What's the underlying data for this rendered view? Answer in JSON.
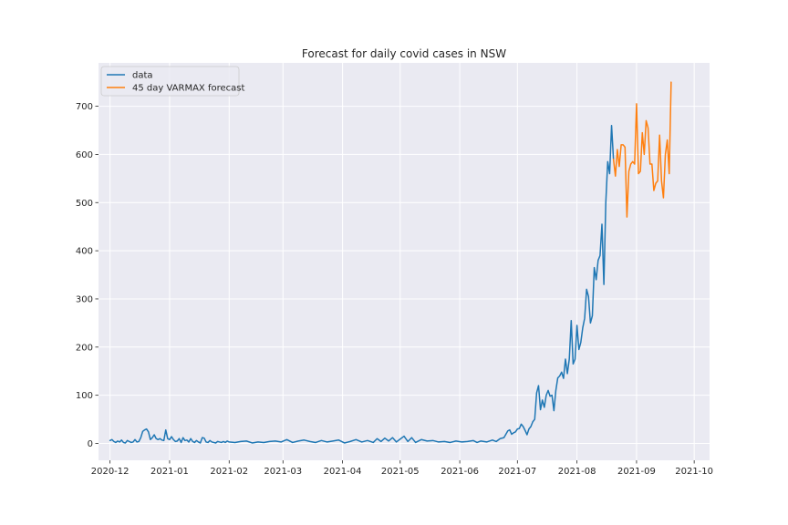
{
  "chart_data": {
    "type": "line",
    "title": "Forecast for daily covid cases in NSW",
    "xlabel": "",
    "ylabel": "",
    "x_axis": "date",
    "xlim": [
      "2020-11-25",
      "2021-10-09"
    ],
    "ylim": [
      -35,
      790
    ],
    "grid": true,
    "legend_position": "top-left",
    "x_ticks": [
      "2020-12-01",
      "2021-01-01",
      "2021-02-01",
      "2021-03-01",
      "2021-04-01",
      "2021-05-01",
      "2021-06-01",
      "2021-07-01",
      "2021-08-01",
      "2021-09-01",
      "2021-10-01"
    ],
    "x_tick_labels": [
      "2020-12",
      "2021-01",
      "2021-02",
      "2021-03",
      "2021-04",
      "2021-05",
      "2021-06",
      "2021-07",
      "2021-08",
      "2021-09",
      "2021-10"
    ],
    "y_ticks": [
      0,
      100,
      200,
      300,
      400,
      500,
      600,
      700
    ],
    "y_tick_labels": [
      "0",
      "100",
      "200",
      "300",
      "400",
      "500",
      "600",
      "700"
    ],
    "series": [
      {
        "name": "data",
        "color": "#1f77b4",
        "points": [
          [
            "2020-12-01",
            6
          ],
          [
            "2020-12-02",
            8
          ],
          [
            "2020-12-03",
            4
          ],
          [
            "2020-12-04",
            2
          ],
          [
            "2020-12-05",
            5
          ],
          [
            "2020-12-06",
            3
          ],
          [
            "2020-12-07",
            7
          ],
          [
            "2020-12-08",
            2
          ],
          [
            "2020-12-09",
            1
          ],
          [
            "2020-12-10",
            6
          ],
          [
            "2020-12-11",
            4
          ],
          [
            "2020-12-12",
            2
          ],
          [
            "2020-12-13",
            3
          ],
          [
            "2020-12-14",
            8
          ],
          [
            "2020-12-15",
            3
          ],
          [
            "2020-12-16",
            4
          ],
          [
            "2020-12-17",
            12
          ],
          [
            "2020-12-18",
            25
          ],
          [
            "2020-12-19",
            28
          ],
          [
            "2020-12-20",
            30
          ],
          [
            "2020-12-21",
            24
          ],
          [
            "2020-12-22",
            8
          ],
          [
            "2020-12-23",
            12
          ],
          [
            "2020-12-24",
            18
          ],
          [
            "2020-12-25",
            10
          ],
          [
            "2020-12-26",
            8
          ],
          [
            "2020-12-27",
            10
          ],
          [
            "2020-12-28",
            7
          ],
          [
            "2020-12-29",
            6
          ],
          [
            "2020-12-30",
            28
          ],
          [
            "2020-12-31",
            10
          ],
          [
            "2021-01-01",
            8
          ],
          [
            "2021-01-02",
            14
          ],
          [
            "2021-01-03",
            8
          ],
          [
            "2021-01-04",
            4
          ],
          [
            "2021-01-05",
            5
          ],
          [
            "2021-01-06",
            10
          ],
          [
            "2021-01-07",
            2
          ],
          [
            "2021-01-08",
            12
          ],
          [
            "2021-01-09",
            6
          ],
          [
            "2021-01-10",
            7
          ],
          [
            "2021-01-11",
            3
          ],
          [
            "2021-01-12",
            10
          ],
          [
            "2021-01-13",
            4
          ],
          [
            "2021-01-14",
            2
          ],
          [
            "2021-01-15",
            6
          ],
          [
            "2021-01-16",
            3
          ],
          [
            "2021-01-17",
            1
          ],
          [
            "2021-01-18",
            12
          ],
          [
            "2021-01-19",
            11
          ],
          [
            "2021-01-20",
            3
          ],
          [
            "2021-01-21",
            2
          ],
          [
            "2021-01-22",
            6
          ],
          [
            "2021-01-23",
            3
          ],
          [
            "2021-01-24",
            2
          ],
          [
            "2021-01-25",
            1
          ],
          [
            "2021-01-26",
            4
          ],
          [
            "2021-01-27",
            3
          ],
          [
            "2021-01-28",
            2
          ],
          [
            "2021-01-29",
            4
          ],
          [
            "2021-01-30",
            2
          ],
          [
            "2021-01-31",
            5
          ],
          [
            "2021-02-01",
            3
          ],
          [
            "2021-02-04",
            2
          ],
          [
            "2021-02-07",
            4
          ],
          [
            "2021-02-10",
            5
          ],
          [
            "2021-02-13",
            1
          ],
          [
            "2021-02-16",
            3
          ],
          [
            "2021-02-19",
            2
          ],
          [
            "2021-02-22",
            4
          ],
          [
            "2021-02-25",
            5
          ],
          [
            "2021-02-28",
            3
          ],
          [
            "2021-03-03",
            8
          ],
          [
            "2021-03-06",
            2
          ],
          [
            "2021-03-09",
            5
          ],
          [
            "2021-03-12",
            7
          ],
          [
            "2021-03-15",
            4
          ],
          [
            "2021-03-18",
            2
          ],
          [
            "2021-03-21",
            6
          ],
          [
            "2021-03-24",
            3
          ],
          [
            "2021-03-27",
            5
          ],
          [
            "2021-03-30",
            7
          ],
          [
            "2021-04-02",
            1
          ],
          [
            "2021-04-05",
            4
          ],
          [
            "2021-04-08",
            8
          ],
          [
            "2021-04-11",
            3
          ],
          [
            "2021-04-14",
            6
          ],
          [
            "2021-04-17",
            2
          ],
          [
            "2021-04-19",
            10
          ],
          [
            "2021-04-21",
            4
          ],
          [
            "2021-04-23",
            11
          ],
          [
            "2021-04-25",
            5
          ],
          [
            "2021-04-27",
            12
          ],
          [
            "2021-04-29",
            3
          ],
          [
            "2021-05-01",
            9
          ],
          [
            "2021-05-03",
            15
          ],
          [
            "2021-05-05",
            4
          ],
          [
            "2021-05-07",
            12
          ],
          [
            "2021-05-09",
            2
          ],
          [
            "2021-05-12",
            8
          ],
          [
            "2021-05-15",
            5
          ],
          [
            "2021-05-18",
            6
          ],
          [
            "2021-05-21",
            3
          ],
          [
            "2021-05-24",
            4
          ],
          [
            "2021-05-27",
            2
          ],
          [
            "2021-05-30",
            5
          ],
          [
            "2021-06-02",
            3
          ],
          [
            "2021-06-05",
            4
          ],
          [
            "2021-06-08",
            6
          ],
          [
            "2021-06-10",
            2
          ],
          [
            "2021-06-12",
            5
          ],
          [
            "2021-06-15",
            3
          ],
          [
            "2021-06-18",
            7
          ],
          [
            "2021-06-20",
            4
          ],
          [
            "2021-06-22",
            10
          ],
          [
            "2021-06-24",
            12
          ],
          [
            "2021-06-26",
            26
          ],
          [
            "2021-06-27",
            28
          ],
          [
            "2021-06-28",
            19
          ],
          [
            "2021-06-29",
            22
          ],
          [
            "2021-06-30",
            24
          ],
          [
            "2021-07-01",
            30
          ],
          [
            "2021-07-02",
            31
          ],
          [
            "2021-07-03",
            40
          ],
          [
            "2021-07-04",
            35
          ],
          [
            "2021-07-05",
            27
          ],
          [
            "2021-07-06",
            18
          ],
          [
            "2021-07-07",
            30
          ],
          [
            "2021-07-08",
            35
          ],
          [
            "2021-07-09",
            45
          ],
          [
            "2021-07-10",
            50
          ],
          [
            "2021-07-11",
            105
          ],
          [
            "2021-07-12",
            120
          ],
          [
            "2021-07-13",
            70
          ],
          [
            "2021-07-14",
            90
          ],
          [
            "2021-07-15",
            75
          ],
          [
            "2021-07-16",
            100
          ],
          [
            "2021-07-17",
            110
          ],
          [
            "2021-07-18",
            98
          ],
          [
            "2021-07-19",
            100
          ],
          [
            "2021-07-20",
            68
          ],
          [
            "2021-07-21",
            110
          ],
          [
            "2021-07-22",
            136
          ],
          [
            "2021-07-23",
            140
          ],
          [
            "2021-07-24",
            148
          ],
          [
            "2021-07-25",
            135
          ],
          [
            "2021-07-26",
            175
          ],
          [
            "2021-07-27",
            145
          ],
          [
            "2021-07-28",
            175
          ],
          [
            "2021-07-29",
            255
          ],
          [
            "2021-07-30",
            165
          ],
          [
            "2021-07-31",
            175
          ],
          [
            "2021-08-01",
            245
          ],
          [
            "2021-08-02",
            195
          ],
          [
            "2021-08-03",
            210
          ],
          [
            "2021-08-04",
            240
          ],
          [
            "2021-08-05",
            260
          ],
          [
            "2021-08-06",
            320
          ],
          [
            "2021-08-07",
            305
          ],
          [
            "2021-08-08",
            250
          ],
          [
            "2021-08-09",
            265
          ],
          [
            "2021-08-10",
            365
          ],
          [
            "2021-08-11",
            340
          ],
          [
            "2021-08-12",
            380
          ],
          [
            "2021-08-13",
            390
          ],
          [
            "2021-08-14",
            455
          ],
          [
            "2021-08-15",
            330
          ],
          [
            "2021-08-16",
            500
          ],
          [
            "2021-08-17",
            585
          ],
          [
            "2021-08-18",
            560
          ],
          [
            "2021-08-19",
            660
          ],
          [
            "2021-08-20",
            590
          ]
        ]
      },
      {
        "name": "45 day VARMAX forecast",
        "color": "#ff7f0e",
        "points": [
          [
            "2021-08-20",
            590
          ],
          [
            "2021-08-21",
            555
          ],
          [
            "2021-08-22",
            610
          ],
          [
            "2021-08-23",
            575
          ],
          [
            "2021-08-24",
            620
          ],
          [
            "2021-08-25",
            620
          ],
          [
            "2021-08-26",
            615
          ],
          [
            "2021-08-27",
            470
          ],
          [
            "2021-08-28",
            565
          ],
          [
            "2021-08-29",
            580
          ],
          [
            "2021-08-30",
            585
          ],
          [
            "2021-08-31",
            580
          ],
          [
            "2021-09-01",
            705
          ],
          [
            "2021-09-02",
            560
          ],
          [
            "2021-09-03",
            565
          ],
          [
            "2021-09-04",
            645
          ],
          [
            "2021-09-05",
            600
          ],
          [
            "2021-09-06",
            670
          ],
          [
            "2021-09-07",
            655
          ],
          [
            "2021-09-08",
            580
          ],
          [
            "2021-09-09",
            580
          ],
          [
            "2021-09-10",
            525
          ],
          [
            "2021-09-11",
            540
          ],
          [
            "2021-09-12",
            545
          ],
          [
            "2021-09-13",
            640
          ],
          [
            "2021-09-14",
            545
          ],
          [
            "2021-09-15",
            510
          ],
          [
            "2021-09-16",
            600
          ],
          [
            "2021-09-17",
            630
          ],
          [
            "2021-09-18",
            560
          ],
          [
            "2021-09-19",
            750
          ]
        ]
      }
    ]
  }
}
